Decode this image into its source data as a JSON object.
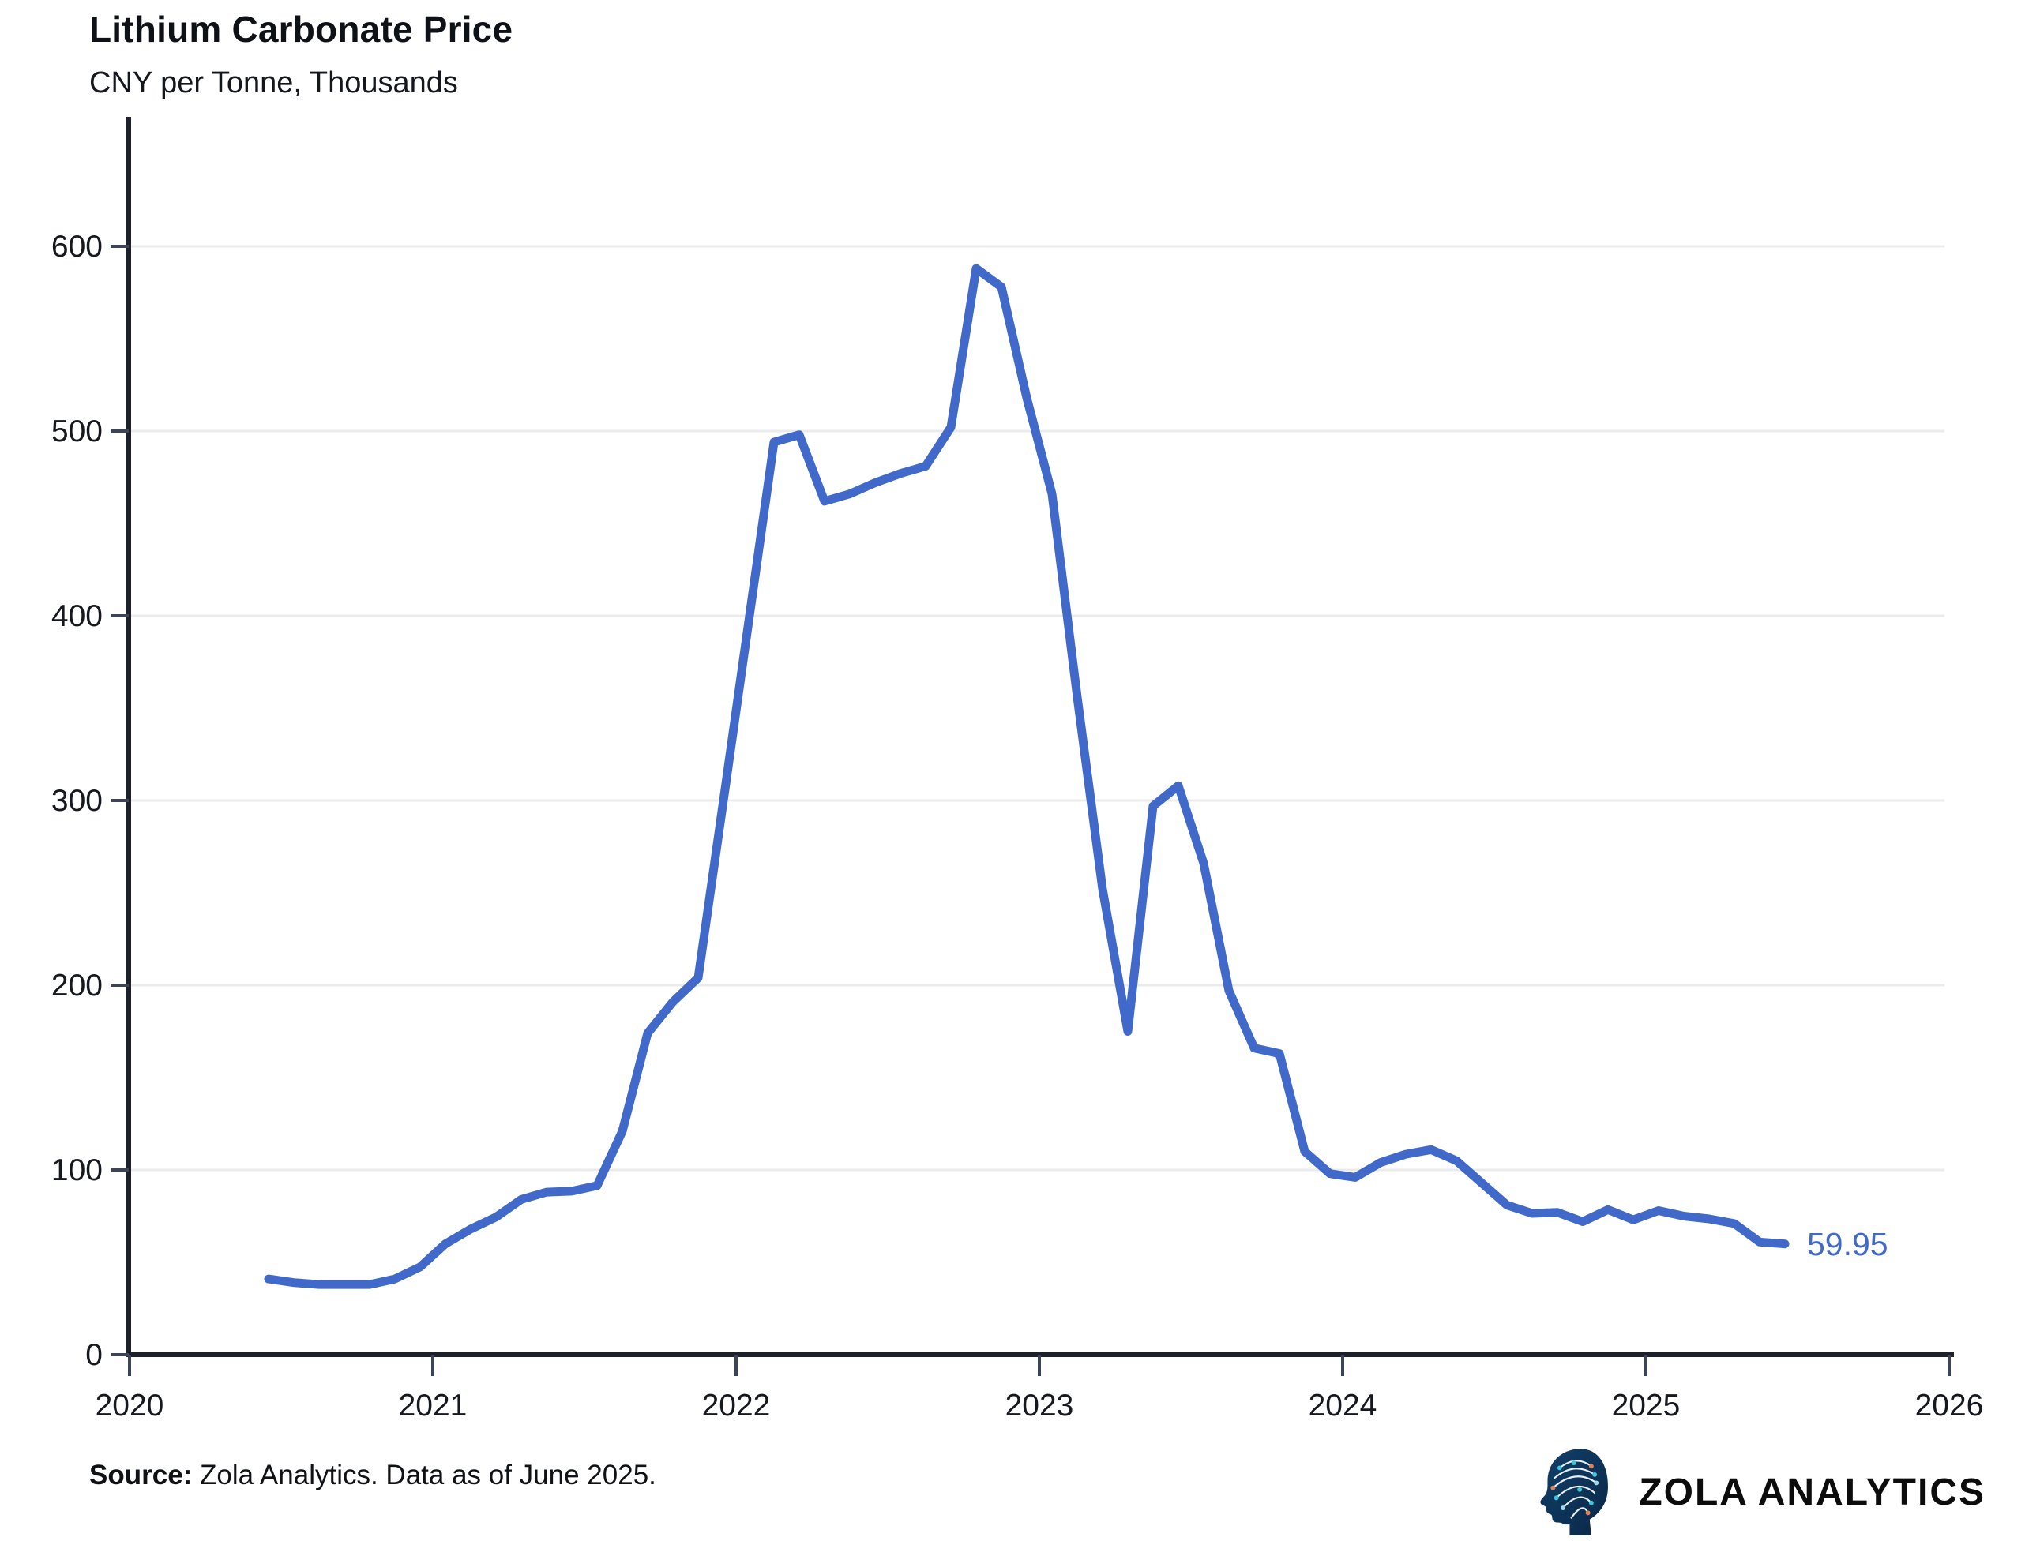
{
  "header": {
    "title": "Lithium Carbonate Price",
    "subtitle": "CNY per Tonne, Thousands"
  },
  "chart_data": {
    "type": "line",
    "title": "Lithium Carbonate Price",
    "subtitle": "CNY per Tonne, Thousands",
    "ylabel": "CNY per Tonne, Thousands",
    "xlabel": "",
    "grid": "horizontal",
    "legend": "none",
    "line_color": "#4169c9",
    "axis_color": "#1c212c",
    "tick_color": "#3c4456",
    "gridline_color": "#ebebeb",
    "xlim": [
      2020,
      2026
    ],
    "ylim": [
      0,
      650
    ],
    "x_ticks": [
      2020,
      2021,
      2022,
      2023,
      2024,
      2025,
      2026
    ],
    "y_ticks": [
      0,
      100,
      200,
      300,
      400,
      500,
      600
    ],
    "end_label": "59.95",
    "last_value": 59.95,
    "x": [
      "2020-06",
      "2020-07",
      "2020-08",
      "2020-09",
      "2020-10",
      "2020-11",
      "2020-12",
      "2021-01",
      "2021-02",
      "2021-03",
      "2021-04",
      "2021-05",
      "2021-06",
      "2021-07",
      "2021-08",
      "2021-09",
      "2021-10",
      "2021-11",
      "2021-12",
      "2022-01",
      "2022-02",
      "2022-03",
      "2022-04",
      "2022-05",
      "2022-06",
      "2022-07",
      "2022-08",
      "2022-09",
      "2022-10",
      "2022-11",
      "2022-12",
      "2023-01",
      "2023-02",
      "2023-03",
      "2023-04",
      "2023-05",
      "2023-06",
      "2023-07",
      "2023-08",
      "2023-09",
      "2023-10",
      "2023-11",
      "2023-12",
      "2024-01",
      "2024-02",
      "2024-03",
      "2024-04",
      "2024-05",
      "2024-06",
      "2024-07",
      "2024-08",
      "2024-09",
      "2024-10",
      "2024-11",
      "2024-12",
      "2025-01",
      "2025-02",
      "2025-03",
      "2025-04",
      "2025-05",
      "2025-06"
    ],
    "values": [
      41,
      39,
      38,
      38,
      38,
      41,
      47.5,
      60,
      68,
      74.5,
      84,
      88,
      88.5,
      91.5,
      121,
      174,
      191,
      204,
      300,
      397,
      494,
      498,
      462,
      466,
      472,
      477,
      481,
      502,
      588,
      578,
      518,
      466,
      356,
      252,
      175,
      297,
      308,
      266,
      197,
      166,
      163,
      110,
      98,
      96,
      104,
      108.5,
      111,
      105,
      93,
      81,
      76.5,
      77,
      72,
      78.5,
      73,
      78,
      75,
      73.5,
      71,
      61,
      59.95
    ]
  },
  "footer": {
    "source_label": "Source:",
    "source_text": " Zola Analytics. Data as of June 2025."
  },
  "logo": {
    "name": "ZOLA ANALYTICS"
  }
}
